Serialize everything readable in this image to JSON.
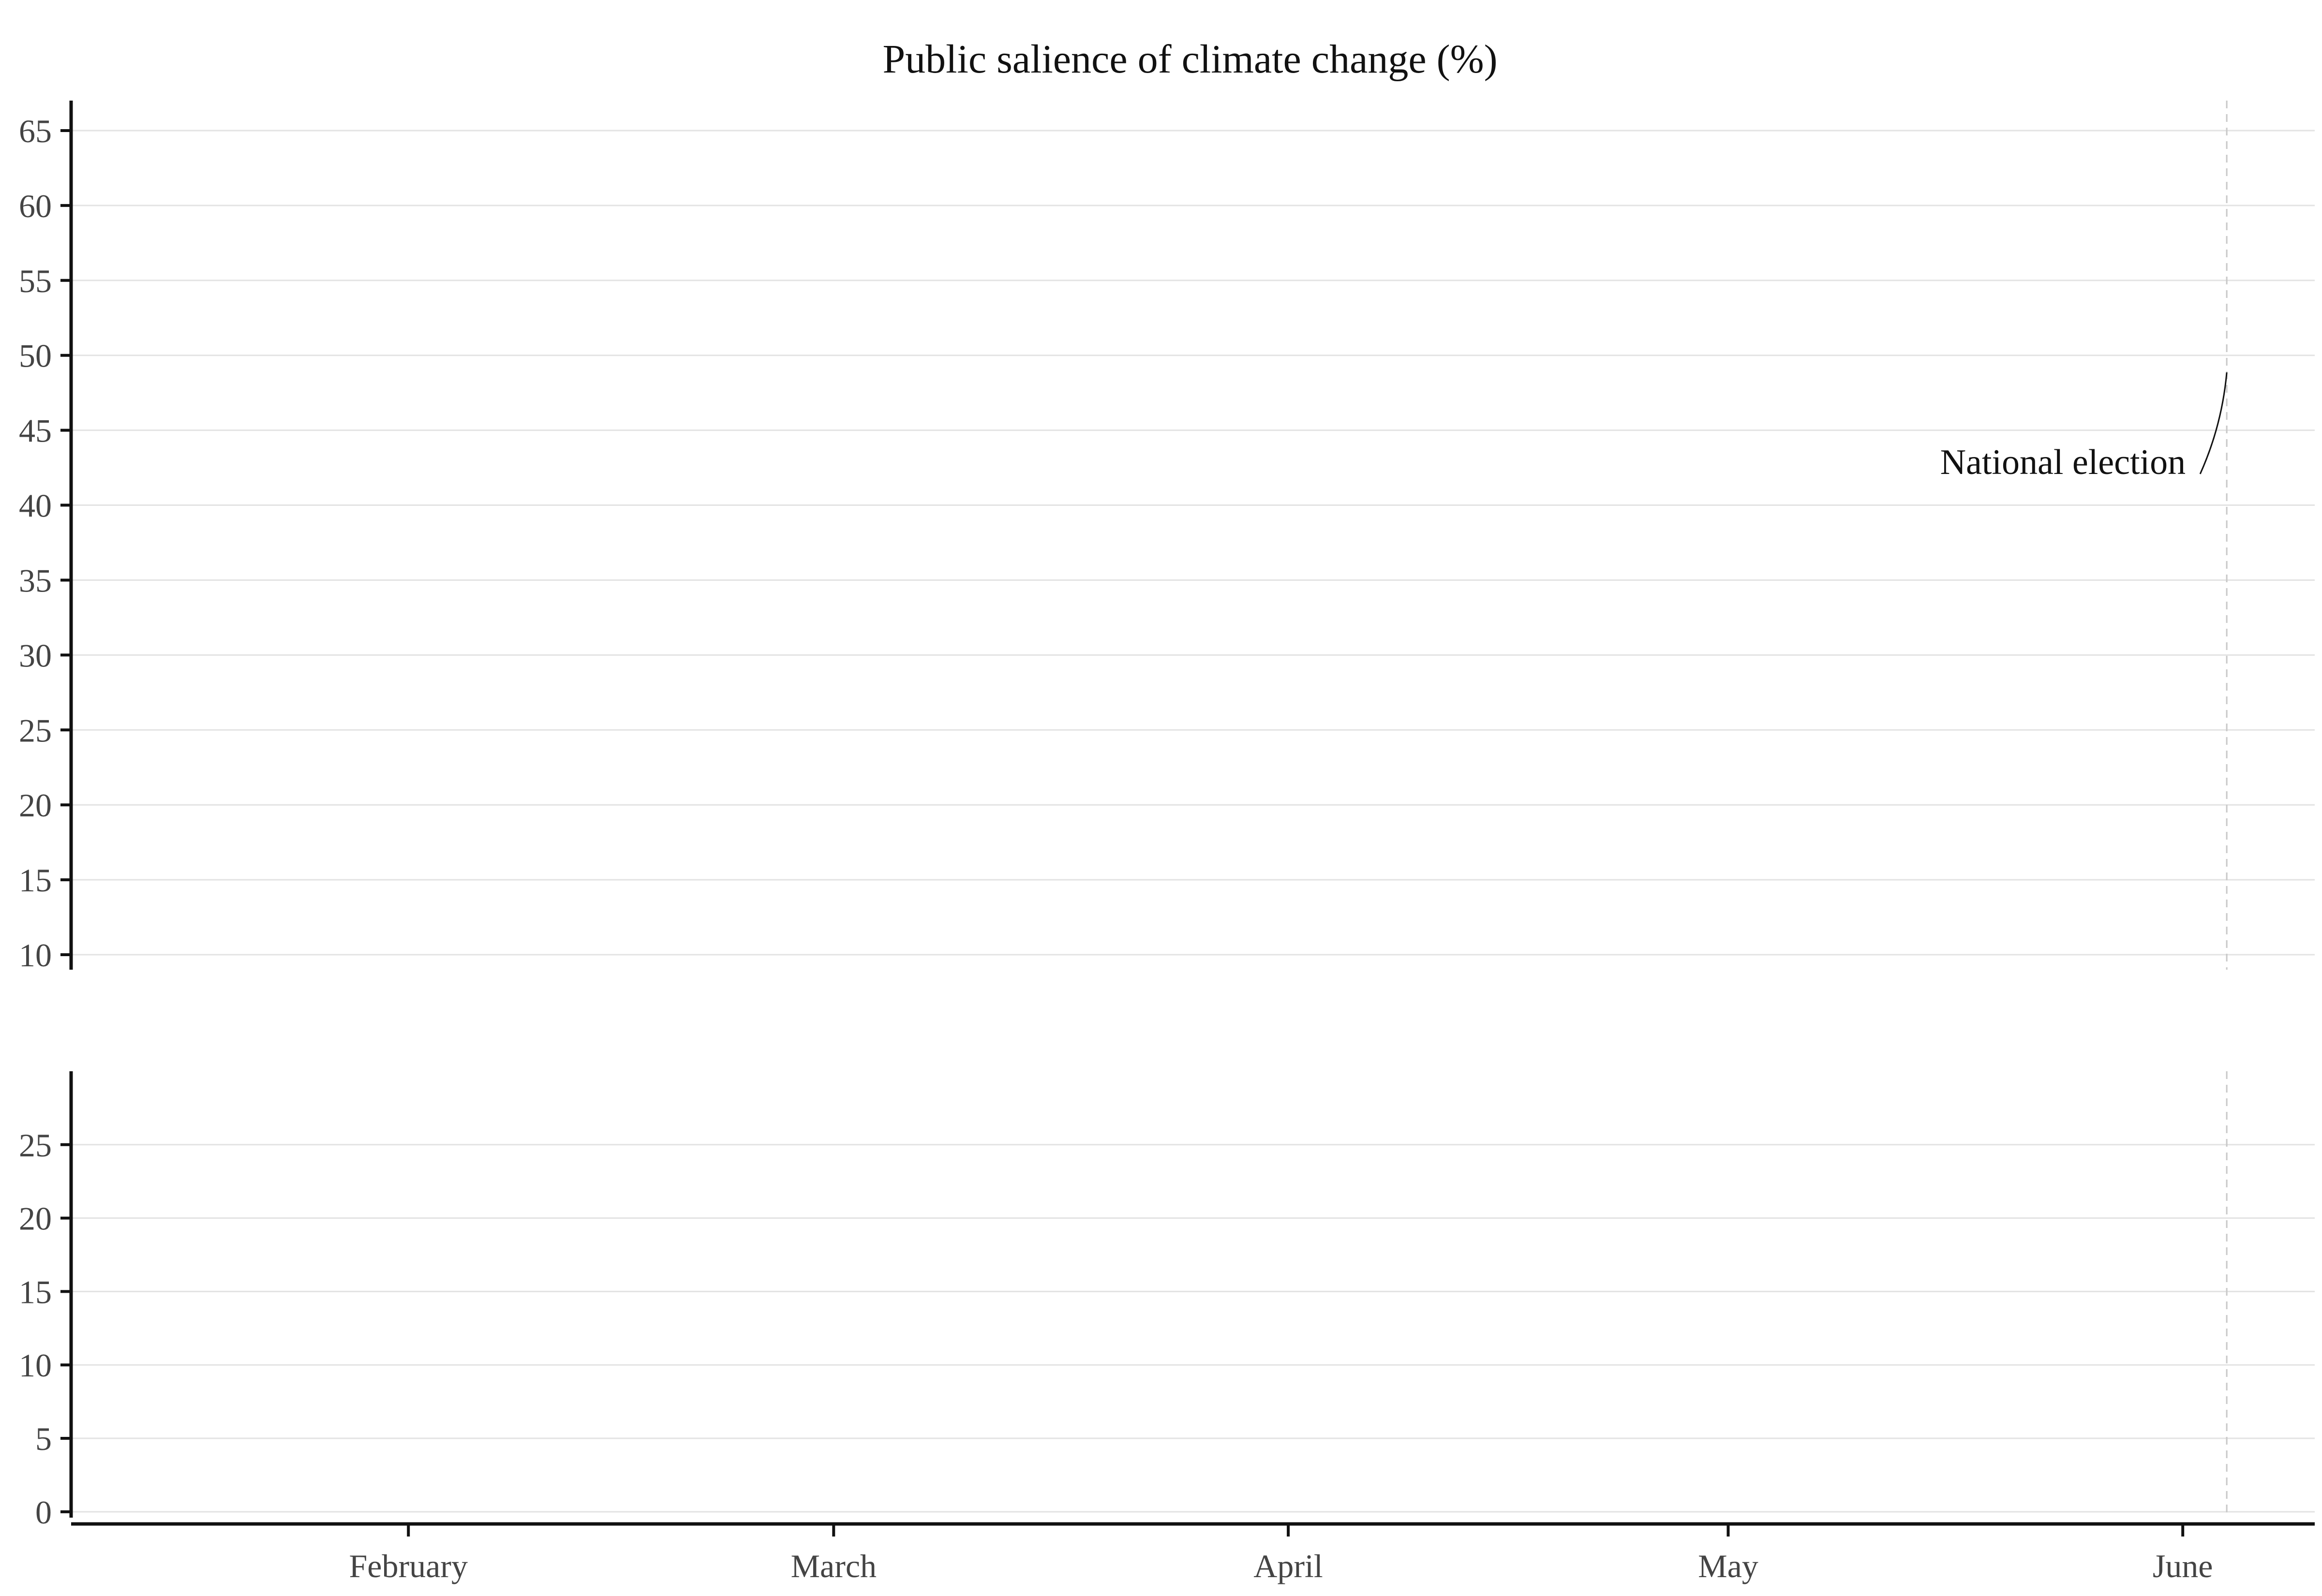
{
  "chart_data": {
    "type": "line",
    "title": "Public salience of climate change (%)",
    "xlabel": "",
    "ylabel": "",
    "x_axis": {
      "tick_labels": [
        "February",
        "March",
        "April",
        "May",
        "June"
      ],
      "range": [
        "2024-01-09",
        "2024-06-10"
      ]
    },
    "panels": [
      {
        "name": "",
        "ylim": [
          9,
          67
        ],
        "y_ticks": [
          10,
          15,
          20,
          25,
          30,
          35,
          40,
          45,
          50,
          55,
          60,
          65
        ],
        "grid": true,
        "series": []
      },
      {
        "name": "",
        "ylim": [
          -0.4,
          30
        ],
        "y_ticks": [
          0,
          5,
          10,
          15,
          20,
          25
        ],
        "grid": true,
        "series": []
      }
    ],
    "annotations": [
      {
        "text": "National election",
        "date": "2024-06-04",
        "style": "dashed-vertical-line"
      }
    ]
  }
}
